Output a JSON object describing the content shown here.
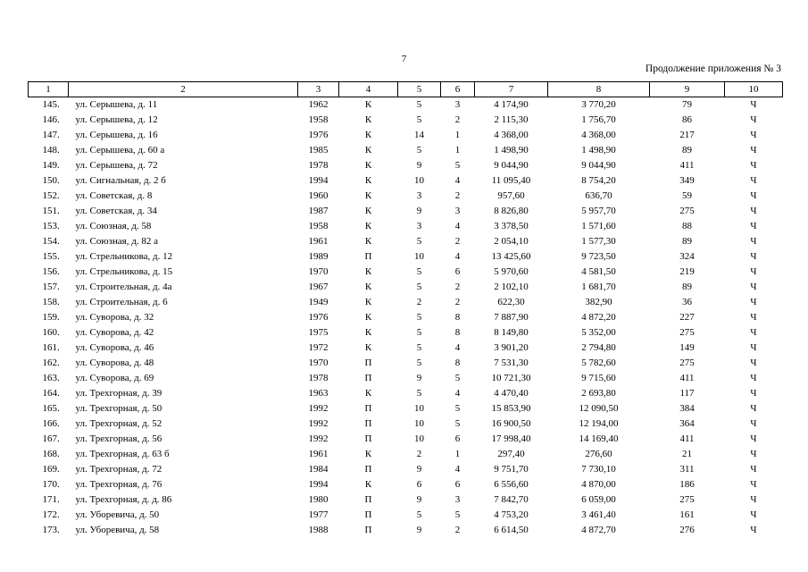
{
  "page_number": "7",
  "caption": "Продолжение приложения № 3",
  "columns": [
    "1",
    "2",
    "3",
    "4",
    "5",
    "6",
    "7",
    "8",
    "9",
    "10"
  ],
  "rows": [
    [
      "145.",
      "ул. Серышева, д. 11",
      "1962",
      "К",
      "5",
      "3",
      "4 174,90",
      "3 770,20",
      "79",
      "Ч"
    ],
    [
      "146.",
      "ул. Серышева, д. 12",
      "1958",
      "К",
      "5",
      "2",
      "2 115,30",
      "1 756,70",
      "86",
      "Ч"
    ],
    [
      "147.",
      "ул. Серышева, д. 16",
      "1976",
      "К",
      "14",
      "1",
      "4 368,00",
      "4 368,00",
      "217",
      "Ч"
    ],
    [
      "148.",
      "ул. Серышева, д. 60 а",
      "1985",
      "К",
      "5",
      "1",
      "1 498,90",
      "1 498,90",
      "89",
      "Ч"
    ],
    [
      "149.",
      "ул. Серышева, д. 72",
      "1978",
      "К",
      "9",
      "5",
      "9 044,90",
      "9 044,90",
      "411",
      "Ч"
    ],
    [
      "150.",
      "ул. Сигнальная, д. 2 б",
      "1994",
      "К",
      "10",
      "4",
      "11 095,40",
      "8 754,20",
      "349",
      "Ч"
    ],
    [
      "152.",
      "ул. Советская, д. 8",
      "1960",
      "К",
      "3",
      "2",
      "957,60",
      "636,70",
      "59",
      "Ч"
    ],
    [
      "151.",
      "ул. Советская, д. 34",
      "1987",
      "К",
      "9",
      "3",
      "8 826,80",
      "5 957,70",
      "275",
      "Ч"
    ],
    [
      "153.",
      "ул. Союзная, д. 58",
      "1958",
      "К",
      "3",
      "4",
      "3 378,50",
      "1 571,60",
      "88",
      "Ч"
    ],
    [
      "154.",
      "ул. Союзная, д. 82 а",
      "1961",
      "К",
      "5",
      "2",
      "2 054,10",
      "1 577,30",
      "89",
      "Ч"
    ],
    [
      "155.",
      "ул. Стрельникова, д. 12",
      "1989",
      "П",
      "10",
      "4",
      "13 425,60",
      "9 723,50",
      "324",
      "Ч"
    ],
    [
      "156.",
      "ул. Стрельникова, д. 15",
      "1970",
      "К",
      "5",
      "6",
      "5 970,60",
      "4 581,50",
      "219",
      "Ч"
    ],
    [
      "157.",
      "ул. Строительная, д. 4а",
      "1967",
      "К",
      "5",
      "2",
      "2 102,10",
      "1 681,70",
      "89",
      "Ч"
    ],
    [
      "158.",
      "ул. Строительная, д. 6",
      "1949",
      "К",
      "2",
      "2",
      "622,30",
      "382,90",
      "36",
      "Ч"
    ],
    [
      "159.",
      "ул. Суворова, д. 32",
      "1976",
      "К",
      "5",
      "8",
      "7 887,90",
      "4 872,20",
      "227",
      "Ч"
    ],
    [
      "160.",
      "ул. Суворова, д. 42",
      "1975",
      "К",
      "5",
      "8",
      "8 149,80",
      "5 352,00",
      "275",
      "Ч"
    ],
    [
      "161.",
      "ул. Суворова, д. 46",
      "1972",
      "К",
      "5",
      "4",
      "3 901,20",
      "2 794,80",
      "149",
      "Ч"
    ],
    [
      "162.",
      "ул. Суворова, д. 48",
      "1970",
      "П",
      "5",
      "8",
      "7 531,30",
      "5 782,60",
      "275",
      "Ч"
    ],
    [
      "163.",
      "ул. Суворова, д. 69",
      "1978",
      "П",
      "9",
      "5",
      "10 721,30",
      "9 715,60",
      "411",
      "Ч"
    ],
    [
      "164.",
      "ул. Трехгорная, д. 39",
      "1963",
      "К",
      "5",
      "4",
      "4 470,40",
      "2 693,80",
      "117",
      "Ч"
    ],
    [
      "165.",
      "ул. Трехгорная, д. 50",
      "1992",
      "П",
      "10",
      "5",
      "15 853,90",
      "12 090,50",
      "384",
      "Ч"
    ],
    [
      "166.",
      "ул. Трехгорная, д. 52",
      "1992",
      "П",
      "10",
      "5",
      "16 900,50",
      "12 194,00",
      "364",
      "Ч"
    ],
    [
      "167.",
      "ул. Трехгорная, д. 56",
      "1992",
      "П",
      "10",
      "6",
      "17 998,40",
      "14 169,40",
      "411",
      "Ч"
    ],
    [
      "168.",
      "ул. Трехгорная, д. 63 б",
      "1961",
      "К",
      "2",
      "1",
      "297,40",
      "276,60",
      "21",
      "Ч"
    ],
    [
      "169.",
      "ул. Трехгорная, д. 72",
      "1984",
      "П",
      "9",
      "4",
      "9 751,70",
      "7 730,10",
      "311",
      "Ч"
    ],
    [
      "170.",
      "ул. Трехгорная, д. 76",
      "1994",
      "К",
      "6",
      "6",
      "6 556,60",
      "4 870,00",
      "186",
      "Ч"
    ],
    [
      "171.",
      "ул. Трехгорная, д. д. 86",
      "1980",
      "П",
      "9",
      "3",
      "7 842,70",
      "6 059,00",
      "275",
      "Ч"
    ],
    [
      "172.",
      "ул. Уборевича, д. 50",
      "1977",
      "П",
      "5",
      "5",
      "4 753,20",
      "3 461,40",
      "161",
      "Ч"
    ],
    [
      "173.",
      "ул. Уборевича, д. 58",
      "1988",
      "П",
      "9",
      "2",
      "6 614,50",
      "4 872,70",
      "276",
      "Ч"
    ]
  ]
}
